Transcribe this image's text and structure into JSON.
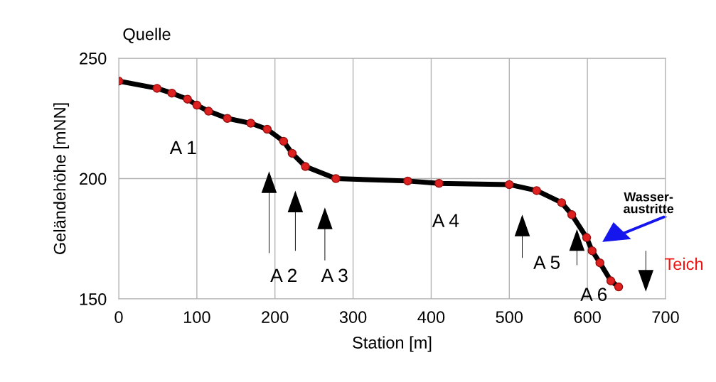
{
  "chart_data": {
    "type": "line",
    "xlabel": "Station [m]",
    "ylabel": "Geländehöhe [mNN]",
    "x": [
      0,
      49,
      68,
      88,
      100,
      115,
      139,
      169,
      190,
      211,
      222,
      239,
      278,
      370,
      410,
      500,
      535,
      567,
      580,
      599,
      606,
      616,
      630,
      640
    ],
    "series": [
      {
        "color": "#000000",
        "values": [
          240.5,
          237.5,
          235.5,
          233,
          230.5,
          228,
          225,
          223,
          220.5,
          215.5,
          210.5,
          205,
          200,
          199,
          198,
          197.5,
          195,
          190,
          185,
          175.5,
          170,
          165,
          157.5,
          155
        ]
      }
    ],
    "xlim": [
      0,
      700
    ],
    "xticks": [
      0,
      100,
      200,
      300,
      400,
      500,
      600,
      700
    ],
    "ylim": [
      150,
      250
    ],
    "yticks": [
      150,
      200,
      250
    ],
    "grid": true,
    "marker": "circle",
    "line_style": "solid",
    "annotations": [
      "Quelle",
      "Teich",
      "A 1",
      "A 2",
      "A 3",
      "A 4",
      "A 5",
      "A 6",
      "Wasser-\naustritte"
    ]
  }
}
